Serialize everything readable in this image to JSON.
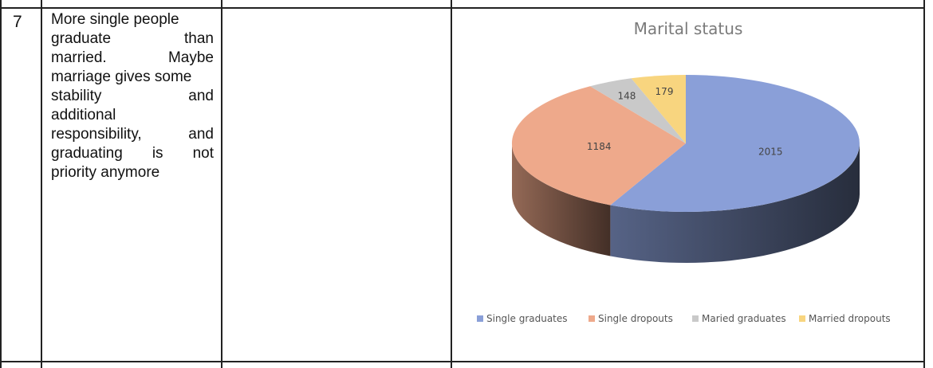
{
  "row": {
    "number": "7",
    "comment_lines": [
      "More single people",
      "graduate than",
      "married. Maybe",
      "marriage gives some",
      "stability and",
      "additional",
      "responsibility, and",
      "graduating is not",
      "priority anymore"
    ]
  },
  "chart_data": {
    "type": "pie",
    "title": "Marital status",
    "categories": [
      "Single graduates",
      "Single dropouts",
      "Maried graduates",
      "Married dropouts"
    ],
    "values": [
      2015,
      1184,
      148,
      179
    ],
    "colors": [
      "#8a9fd8",
      "#eea98b",
      "#c9c9c9",
      "#f8d57f"
    ],
    "legend_position": "bottom"
  }
}
